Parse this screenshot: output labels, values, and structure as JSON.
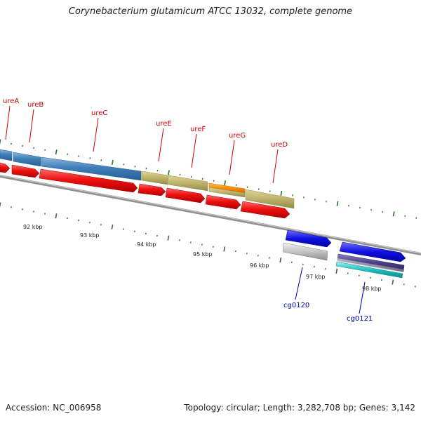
{
  "title": "Corynebacterium glutamicum ATCC 13032, complete genome",
  "accession_text": "Accession: NC_006958",
  "summary_text": "Topology: circular; Length: 3,282,708 bp; Genes: 3,142",
  "colors": {
    "backbone": "#888888",
    "tick": "#1f7a1f",
    "gene_red": "#ee1111",
    "gene_blue": "#3f7fb8",
    "gene_khaki": "#bdb36a",
    "gene_orange": "#ff8c00",
    "gene_navy": "#1010e0",
    "gene_gray": "#bdbdbd",
    "gene_cyan": "#21c0c0",
    "gene_purple": "#4a3f87",
    "label_red": "#cc0000",
    "label_blue": "#0000bb"
  },
  "scale_labels": [
    "92 kbp",
    "93 kbp",
    "94 kbp",
    "95 kbp",
    "96 kbp",
    "97 kbp",
    "98 kbp"
  ],
  "gene_labels": [
    {
      "text": "ureA",
      "color": "label_red"
    },
    {
      "text": "ureB",
      "color": "label_red"
    },
    {
      "text": "ureC",
      "color": "label_red"
    },
    {
      "text": "ureE",
      "color": "label_red"
    },
    {
      "text": "ureF",
      "color": "label_red"
    },
    {
      "text": "ureG",
      "color": "label_red"
    },
    {
      "text": "ureD",
      "color": "label_red"
    },
    {
      "text": "cg0120",
      "color": "label_blue"
    },
    {
      "text": "cg0121",
      "color": "label_blue"
    }
  ]
}
